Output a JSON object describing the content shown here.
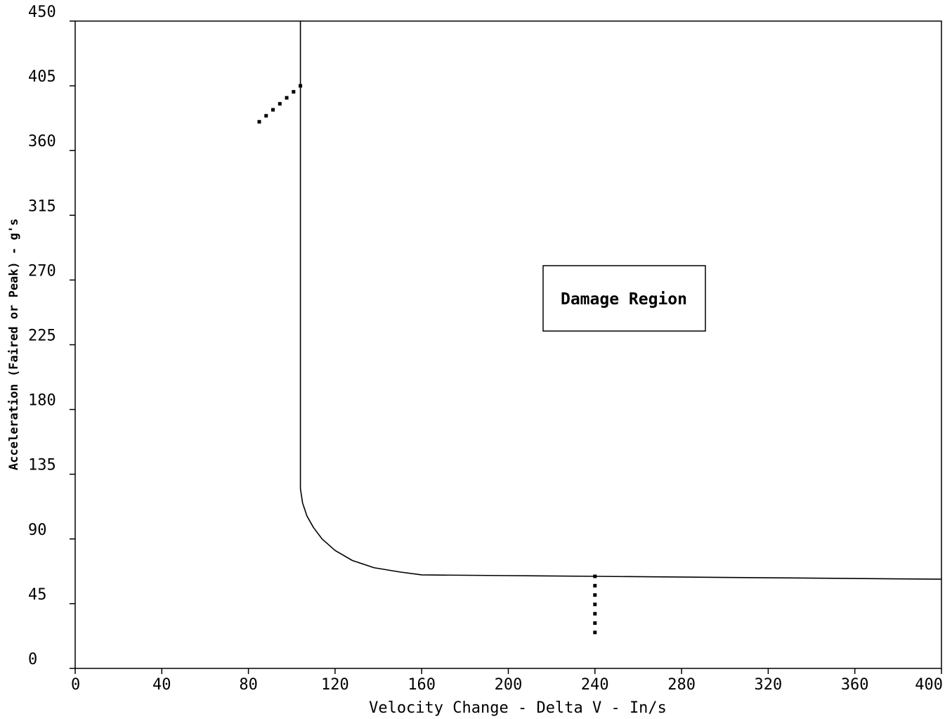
{
  "chart_data": {
    "type": "line",
    "title": "",
    "xlabel": "Velocity Change - Delta V - In/s",
    "ylabel": "Acceleration (Faired or Peak) - g's",
    "xlim": [
      0,
      400
    ],
    "ylim": [
      0,
      450
    ],
    "x_ticks": [
      "0",
      "40",
      "80",
      "120",
      "160",
      "200",
      "240",
      "280",
      "320",
      "360",
      "400"
    ],
    "y_ticks": [
      "0",
      "45",
      "90",
      "135",
      "180",
      "225",
      "270",
      "315",
      "360",
      "405",
      "450"
    ],
    "grid": false,
    "series": [
      {
        "style": "solid",
        "points": [
          [
            104,
            450
          ],
          [
            104,
            125
          ],
          [
            105,
            115
          ],
          [
            107,
            106
          ],
          [
            110,
            98
          ],
          [
            114,
            90
          ],
          [
            120,
            82
          ],
          [
            128,
            75
          ],
          [
            138,
            70
          ],
          [
            150,
            67
          ],
          [
            160,
            65
          ],
          [
            200,
            64.5
          ],
          [
            240,
            64
          ],
          [
            320,
            63
          ],
          [
            400,
            62
          ]
        ]
      },
      {
        "style": "dotted",
        "points": [
          [
            85,
            380
          ],
          [
            104,
            405
          ]
        ]
      },
      {
        "style": "dotted",
        "points": [
          [
            240,
            64
          ],
          [
            240,
            25
          ]
        ]
      }
    ],
    "annotations": [
      {
        "text": "Damage Region",
        "x": 255,
        "y": 255
      }
    ]
  }
}
